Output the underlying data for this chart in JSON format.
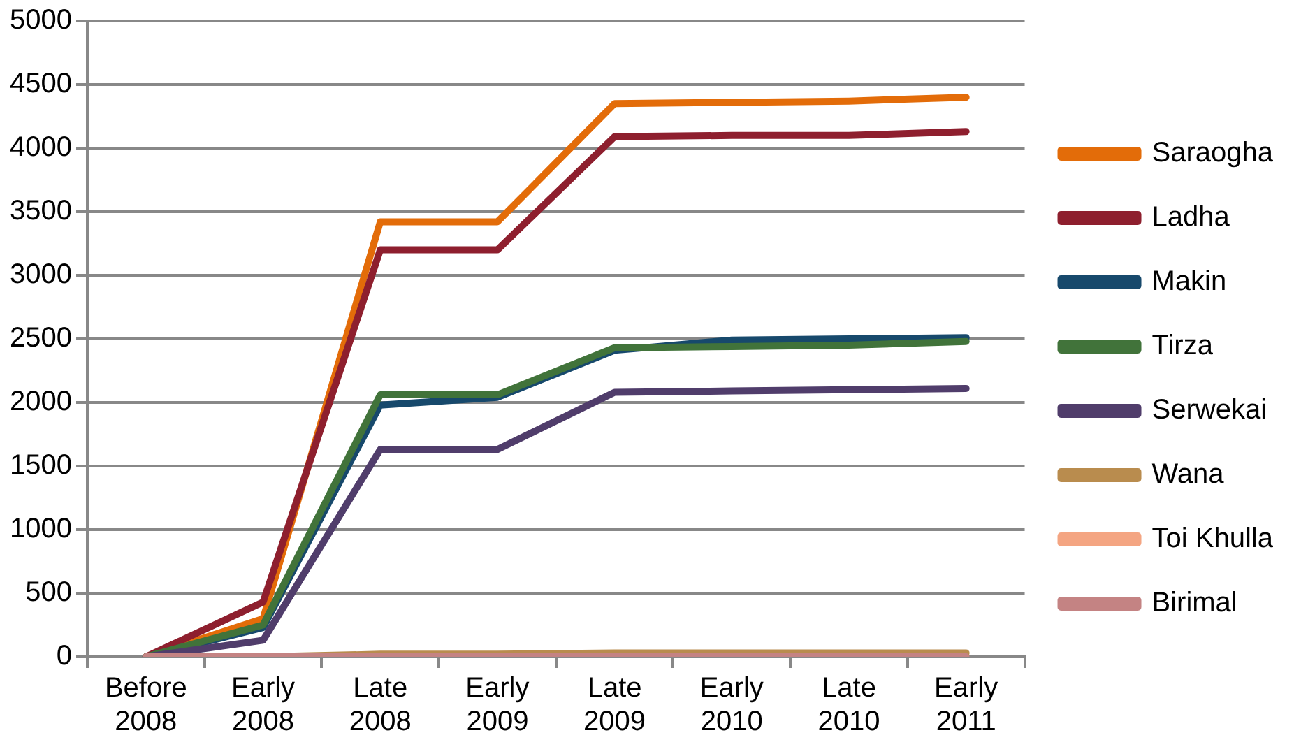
{
  "chart_data": {
    "type": "line",
    "categories": [
      "Before 2008",
      "Early 2008",
      "Late 2008",
      "Early 2009",
      "Late 2009",
      "Early 2010",
      "Late 2010",
      "Early 2011"
    ],
    "series": [
      {
        "name": "Saraogha",
        "color": "#e36c09",
        "values": [
          0,
          300,
          3420,
          3420,
          4350,
          4360,
          4370,
          4400
        ]
      },
      {
        "name": "Ladha",
        "color": "#8e1f2e",
        "values": [
          0,
          430,
          3200,
          3200,
          4090,
          4100,
          4100,
          4130
        ]
      },
      {
        "name": "Makin",
        "color": "#17496c",
        "values": [
          0,
          230,
          1980,
          2040,
          2410,
          2490,
          2500,
          2510
        ]
      },
      {
        "name": "Tirza",
        "color": "#41733a",
        "values": [
          0,
          250,
          2060,
          2060,
          2430,
          2440,
          2450,
          2480
        ]
      },
      {
        "name": "Serwekai",
        "color": "#503d6b",
        "values": [
          0,
          130,
          1630,
          1630,
          2080,
          2090,
          2100,
          2110
        ]
      },
      {
        "name": "Wana",
        "color": "#b98c4e",
        "values": [
          0,
          0,
          20,
          20,
          30,
          30,
          30,
          30
        ]
      },
      {
        "name": "Toi Khulla",
        "color": "#f4a582",
        "values": [
          null,
          null,
          null,
          null,
          null,
          null,
          null,
          null
        ]
      },
      {
        "name": "Birimal",
        "color": "#c48383",
        "values": [
          0,
          0,
          0,
          0,
          0,
          0,
          0,
          0
        ]
      }
    ],
    "ylim": [
      0,
      5000
    ],
    "yticks": [
      0,
      500,
      1000,
      1500,
      2000,
      2500,
      3000,
      3500,
      4000,
      4500,
      5000
    ],
    "grid": "y",
    "legend": "right",
    "marker": "none",
    "line_style": "solid"
  }
}
